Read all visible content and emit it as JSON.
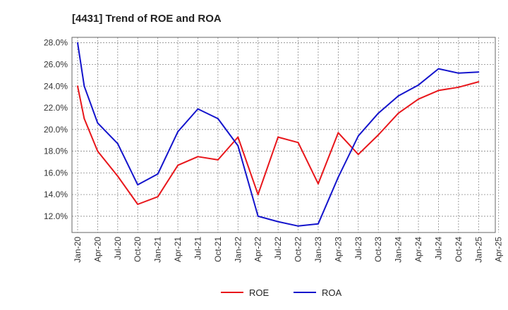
{
  "chart_data": {
    "type": "line",
    "title": "[4431]  Trend of ROE and ROA",
    "xlabel": "",
    "ylabel": "",
    "ylim": [
      10.5,
      28.5
    ],
    "y_ticks": [
      12,
      14,
      16,
      18,
      20,
      22,
      24,
      26,
      28
    ],
    "y_tick_labels": [
      "12.0%",
      "14.0%",
      "16.0%",
      "18.0%",
      "20.0%",
      "22.0%",
      "24.0%",
      "26.0%",
      "28.0%"
    ],
    "x_tick_labels": [
      "Jan-20",
      "Apr-20",
      "Jul-20",
      "Oct-20",
      "Jan-21",
      "Apr-21",
      "Jul-21",
      "Oct-21",
      "Jan-22",
      "Apr-22",
      "Jul-22",
      "Oct-22",
      "Jan-23",
      "Apr-23",
      "Jul-23",
      "Oct-23",
      "Jan-24",
      "Apr-24",
      "Jul-24",
      "Oct-24",
      "Jan-25",
      "Apr-25"
    ],
    "grid": true,
    "legend_position": "bottom-center",
    "series": [
      {
        "name": "ROE",
        "color": "#e8161b",
        "x": [
          0,
          0.33,
          1,
          2,
          3,
          4,
          5,
          6,
          7,
          8,
          9,
          10,
          11,
          12,
          13,
          14,
          15,
          16,
          17,
          18,
          19,
          20
        ],
        "values": [
          24.0,
          21.0,
          18.0,
          15.7,
          13.1,
          13.8,
          16.7,
          17.5,
          17.2,
          19.3,
          14.0,
          19.3,
          18.8,
          15.0,
          19.7,
          17.7,
          19.5,
          21.5,
          22.8,
          23.6,
          23.9,
          24.4
        ]
      },
      {
        "name": "ROA",
        "color": "#1414cc",
        "x": [
          0,
          0.33,
          1,
          2,
          3,
          4,
          5,
          6,
          7,
          8,
          9,
          10,
          11,
          12,
          13,
          14,
          15,
          16,
          17,
          18,
          19,
          20
        ],
        "values": [
          28.0,
          24.0,
          20.6,
          18.7,
          14.9,
          15.9,
          19.8,
          21.9,
          21.0,
          18.5,
          12.0,
          11.5,
          11.1,
          11.3,
          15.6,
          19.4,
          21.5,
          23.1,
          24.1,
          25.6,
          25.2,
          25.3
        ]
      }
    ]
  }
}
